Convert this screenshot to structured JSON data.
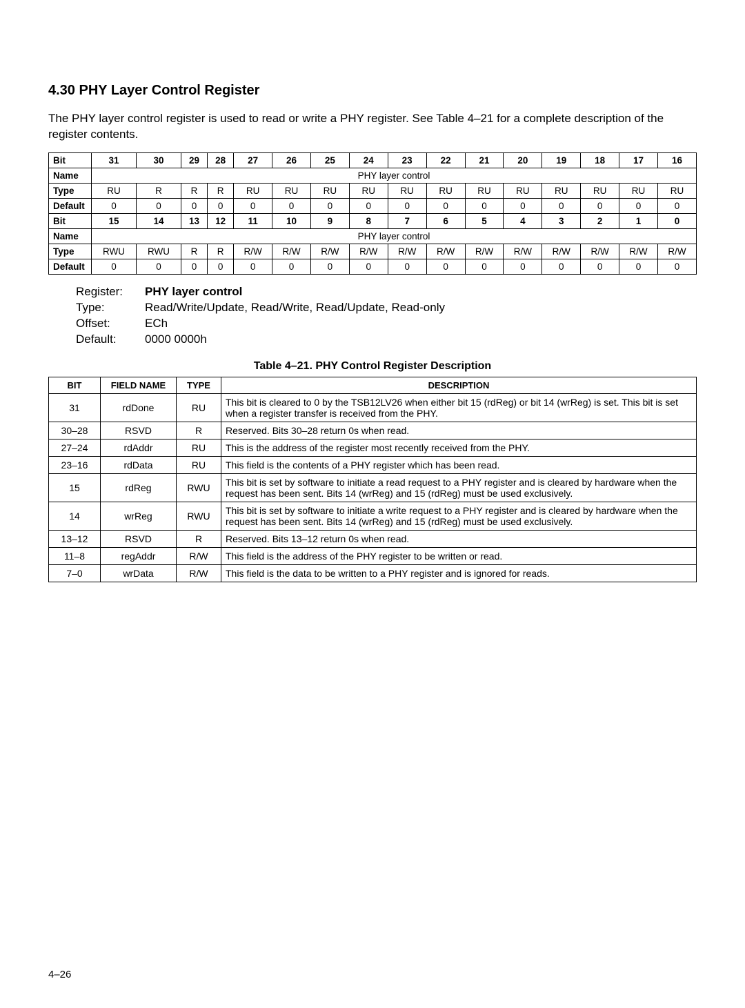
{
  "section": {
    "number": "4.30",
    "title": "PHY Layer Control Register",
    "intro": "The PHY layer control register is used to read or write a PHY register. See Table 4–21 for a complete description of the register contents."
  },
  "bitmap": {
    "rows_upper": {
      "bit_label": "Bit",
      "bits": [
        "31",
        "30",
        "29",
        "28",
        "27",
        "26",
        "25",
        "24",
        "23",
        "22",
        "21",
        "20",
        "19",
        "18",
        "17",
        "16"
      ],
      "name_label": "Name",
      "name_span": "PHY layer control",
      "type_label": "Type",
      "types": [
        "RU",
        "R",
        "R",
        "R",
        "RU",
        "RU",
        "RU",
        "RU",
        "RU",
        "RU",
        "RU",
        "RU",
        "RU",
        "RU",
        "RU",
        "RU"
      ],
      "default_label": "Default",
      "defaults": [
        "0",
        "0",
        "0",
        "0",
        "0",
        "0",
        "0",
        "0",
        "0",
        "0",
        "0",
        "0",
        "0",
        "0",
        "0",
        "0"
      ]
    },
    "rows_lower": {
      "bit_label": "Bit",
      "bits": [
        "15",
        "14",
        "13",
        "12",
        "11",
        "10",
        "9",
        "8",
        "7",
        "6",
        "5",
        "4",
        "3",
        "2",
        "1",
        "0"
      ],
      "name_label": "Name",
      "name_span": "PHY layer control",
      "type_label": "Type",
      "types": [
        "RWU",
        "RWU",
        "R",
        "R",
        "R/W",
        "R/W",
        "R/W",
        "R/W",
        "R/W",
        "R/W",
        "R/W",
        "R/W",
        "R/W",
        "R/W",
        "R/W",
        "R/W"
      ],
      "default_label": "Default",
      "defaults": [
        "0",
        "0",
        "0",
        "0",
        "0",
        "0",
        "0",
        "0",
        "0",
        "0",
        "0",
        "0",
        "0",
        "0",
        "0",
        "0"
      ]
    }
  },
  "reginfo": {
    "register_label": "Register:",
    "register_value": "PHY layer control",
    "type_label": "Type:",
    "type_value": "Read/Write/Update, Read/Write, Read/Update, Read-only",
    "offset_label": "Offset:",
    "offset_value": "ECh",
    "default_label": "Default:",
    "default_value": "0000 0000h"
  },
  "desc_table": {
    "caption": "Table 4–21.  PHY Control Register Description",
    "headers": [
      "BIT",
      "FIELD NAME",
      "TYPE",
      "DESCRIPTION"
    ],
    "rows": [
      {
        "bit": "31",
        "field": "rdDone",
        "type": "RU",
        "desc": "This bit is cleared to 0 by the TSB12LV26 when either bit 15 (rdReg) or bit 14 (wrReg) is set. This bit is set when a register transfer is received from the PHY."
      },
      {
        "bit": "30–28",
        "field": "RSVD",
        "type": "R",
        "desc": "Reserved. Bits 30–28 return 0s when read."
      },
      {
        "bit": "27–24",
        "field": "rdAddr",
        "type": "RU",
        "desc": "This is the address of the register most recently received from the PHY."
      },
      {
        "bit": "23–16",
        "field": "rdData",
        "type": "RU",
        "desc": "This field is the contents of a PHY register which has been read."
      },
      {
        "bit": "15",
        "field": "rdReg",
        "type": "RWU",
        "desc": "This bit is set by software to initiate a read request to a PHY register and is cleared by hardware when the request has been sent. Bits 14 (wrReg) and 15 (rdReg) must be used exclusively."
      },
      {
        "bit": "14",
        "field": "wrReg",
        "type": "RWU",
        "desc": "This bit is set by software to initiate a write request to a PHY register and is cleared by hardware when the request has been sent. Bits 14 (wrReg) and 15 (rdReg) must be used exclusively."
      },
      {
        "bit": "13–12",
        "field": "RSVD",
        "type": "R",
        "desc": "Reserved. Bits 13–12 return 0s when read."
      },
      {
        "bit": "11–8",
        "field": "regAddr",
        "type": "R/W",
        "desc": "This field is the address of the PHY register to be written or read."
      },
      {
        "bit": "7–0",
        "field": "wrData",
        "type": "R/W",
        "desc": "This field is the data to be written to a PHY register and is ignored for reads."
      }
    ]
  },
  "page_number": "4–26"
}
